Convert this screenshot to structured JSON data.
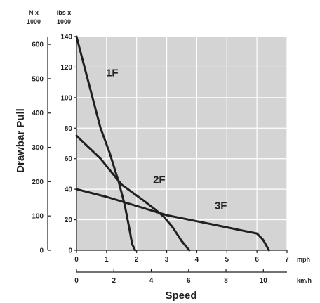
{
  "chart_data": {
    "type": "line",
    "title": "",
    "ylabel": "Drawbar Pull",
    "xlabel": "Speed",
    "plot_background": "#d4d4d4",
    "grid": true,
    "gridline_color": "#ffffff",
    "line_color": "#231f20",
    "y_axes": [
      {
        "id": "lbs",
        "header": [
          "lbs x",
          "1000"
        ],
        "range": [
          0,
          140
        ],
        "ticks": [
          0,
          20,
          40,
          60,
          80,
          100,
          120,
          140
        ]
      },
      {
        "id": "N",
        "header": [
          "N x",
          "1000"
        ],
        "ticks": [
          0,
          100,
          200,
          300,
          400,
          500,
          600
        ]
      }
    ],
    "x_axes": [
      {
        "id": "mph",
        "unit": "mph",
        "range": [
          0,
          7
        ],
        "ticks": [
          0,
          1,
          2,
          3,
          4,
          5,
          6,
          7
        ]
      },
      {
        "id": "kmh",
        "unit": "km/h",
        "ticks": [
          0,
          2,
          4,
          6,
          8,
          10
        ]
      }
    ],
    "series": [
      {
        "name": "1F",
        "x": [
          0,
          0.4,
          0.8,
          1.1,
          1.4,
          1.6,
          1.75,
          1.85,
          1.95
        ],
        "y": [
          140,
          110,
          80,
          64,
          45,
          30,
          15,
          4,
          0
        ]
      },
      {
        "name": "2F",
        "x": [
          0,
          0.8,
          1.5,
          2.2,
          2.6,
          2.9,
          3.2,
          3.5,
          3.75
        ],
        "y": [
          75,
          60,
          43,
          33,
          27,
          22,
          15,
          6,
          0
        ]
      },
      {
        "name": "3F",
        "x": [
          0,
          1,
          2,
          3,
          4,
          5,
          5.5,
          6,
          6.2,
          6.4
        ],
        "y": [
          40,
          35,
          29,
          23,
          19,
          15,
          13,
          11,
          7,
          0
        ]
      }
    ]
  }
}
